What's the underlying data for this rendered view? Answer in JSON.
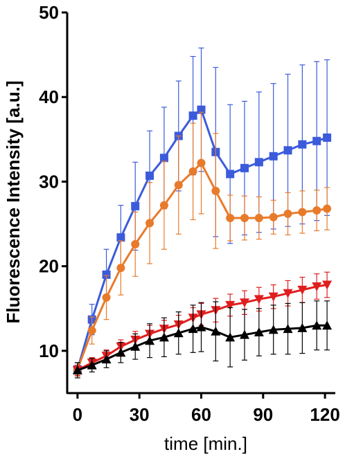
{
  "chart_data": {
    "type": "line",
    "title": "",
    "xlabel": "time [min.]",
    "ylabel": "Fluorescence Intensity [a.u.]",
    "xlim": [
      -5,
      125
    ],
    "ylim": [
      5,
      50
    ],
    "xticks": [
      0,
      30,
      60,
      90,
      120
    ],
    "yticks": [
      10,
      20,
      30,
      40,
      50
    ],
    "grid": false,
    "legend": "none",
    "x": [
      0,
      7,
      14,
      21,
      28,
      35,
      42,
      49,
      56,
      60,
      67,
      74,
      81,
      88,
      95,
      102,
      109,
      116,
      121
    ],
    "series": [
      {
        "color": "#3b5bdb",
        "marker": "square",
        "values": [
          7.8,
          13.7,
          19.0,
          23.4,
          27.1,
          30.7,
          32.8,
          35.4,
          37.8,
          38.5,
          33.5,
          30.9,
          31.6,
          32.3,
          33.0,
          33.7,
          34.4,
          34.8,
          35.2
        ],
        "errors": [
          0.8,
          1.8,
          3.0,
          3.8,
          5.2,
          5.3,
          6.0,
          6.5,
          7.0,
          7.3,
          10.0,
          8.2,
          7.9,
          8.3,
          8.6,
          9.0,
          9.4,
          9.4,
          9.2
        ]
      },
      {
        "color": "#e87a2b",
        "marker": "circle",
        "values": [
          7.8,
          12.4,
          16.3,
          19.8,
          22.6,
          25.1,
          27.2,
          29.6,
          31.2,
          32.2,
          28.9,
          25.7,
          25.7,
          25.7,
          25.8,
          26.2,
          26.4,
          26.6,
          26.8
        ],
        "errors": [
          0.8,
          1.6,
          2.6,
          3.2,
          3.8,
          4.8,
          5.2,
          5.8,
          5.7,
          6.0,
          6.8,
          2.7,
          2.6,
          2.5,
          2.0,
          2.5,
          2.5,
          2.4,
          2.5
        ]
      },
      {
        "color": "#e01e1e",
        "marker": "triangle-down",
        "values": [
          7.7,
          8.6,
          9.4,
          10.5,
          11.3,
          12.0,
          12.6,
          13.1,
          13.9,
          14.3,
          14.8,
          15.4,
          15.7,
          16.1,
          16.4,
          16.8,
          17.2,
          17.6,
          17.8
        ],
        "errors": [
          0.6,
          0.6,
          0.7,
          0.8,
          1.0,
          1.0,
          1.0,
          1.1,
          1.2,
          1.3,
          1.4,
          1.3,
          1.4,
          1.4,
          1.4,
          1.5,
          1.5,
          1.5,
          1.5
        ]
      },
      {
        "color": "#000000",
        "marker": "triangle-up",
        "values": [
          7.7,
          8.3,
          9.0,
          9.8,
          10.5,
          11.2,
          11.6,
          12.1,
          12.6,
          12.8,
          12.3,
          11.6,
          11.9,
          12.2,
          12.5,
          12.6,
          12.7,
          13.0,
          13.0
        ],
        "errors": [
          0.9,
          0.8,
          1.0,
          1.2,
          1.5,
          2.0,
          2.3,
          2.5,
          2.8,
          2.9,
          3.5,
          3.5,
          3.0,
          2.8,
          2.9,
          3.0,
          3.0,
          2.9,
          2.9
        ]
      }
    ]
  }
}
